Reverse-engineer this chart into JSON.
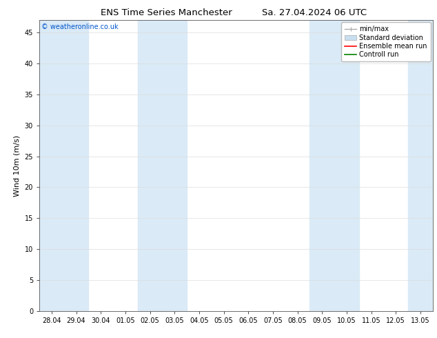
{
  "title_left": "ENS Time Series Manchester",
  "title_right": "Sa. 27.04.2024 06 UTC",
  "ylabel": "Wind 10m (m/s)",
  "watermark": "© weatheronline.co.uk",
  "ylim": [
    0,
    47
  ],
  "yticks": [
    0,
    5,
    10,
    15,
    20,
    25,
    30,
    35,
    40,
    45
  ],
  "xtick_labels": [
    "28.04",
    "29.04",
    "30.04",
    "01.05",
    "02.05",
    "03.05",
    "04.05",
    "05.05",
    "06.05",
    "07.05",
    "08.05",
    "09.05",
    "10.05",
    "11.05",
    "12.05",
    "13.05"
  ],
  "bg_color": "#ffffff",
  "plot_bg_color": "#ffffff",
  "band_color": "#daeaf6",
  "band_positions": [
    0,
    1,
    4,
    5,
    11,
    12,
    15
  ],
  "legend_labels": [
    "min/max",
    "Standard deviation",
    "Ensemble mean run",
    "Controll run"
  ],
  "minmax_color": "#aaaaaa",
  "std_color": "#c8dff0",
  "ens_color": "#ff0000",
  "ctrl_color": "#008000",
  "title_fontsize": 9.5,
  "tick_label_fontsize": 7,
  "axis_label_fontsize": 8,
  "legend_fontsize": 7,
  "watermark_color": "#0055cc",
  "grid_color": "#dddddd"
}
